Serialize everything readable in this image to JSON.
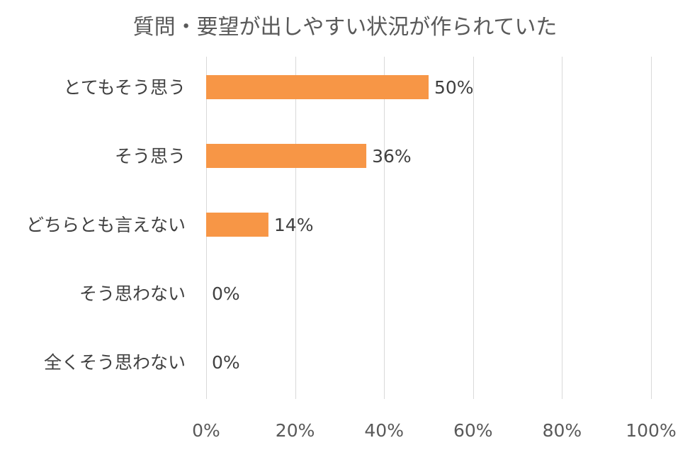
{
  "chart_data": {
    "type": "bar",
    "orientation": "horizontal",
    "title": "質問・要望が出しやすい状況が作られていた",
    "categories": [
      "とてもそう思う",
      "そう思う",
      "どちらとも言えない",
      "そう思わない",
      "全くそう思わない"
    ],
    "values": [
      50,
      36,
      14,
      0,
      0
    ],
    "data_labels": [
      "50%",
      "36%",
      "14%",
      "0%",
      "0%"
    ],
    "xlim": [
      0,
      100
    ],
    "x_ticks": [
      0,
      20,
      40,
      60,
      80,
      100
    ],
    "x_tick_labels": [
      "0%",
      "20%",
      "40%",
      "60%",
      "80%",
      "100%"
    ],
    "grid": true,
    "bar_color": "#f79646",
    "gridline_color": "#d9d9d9"
  }
}
